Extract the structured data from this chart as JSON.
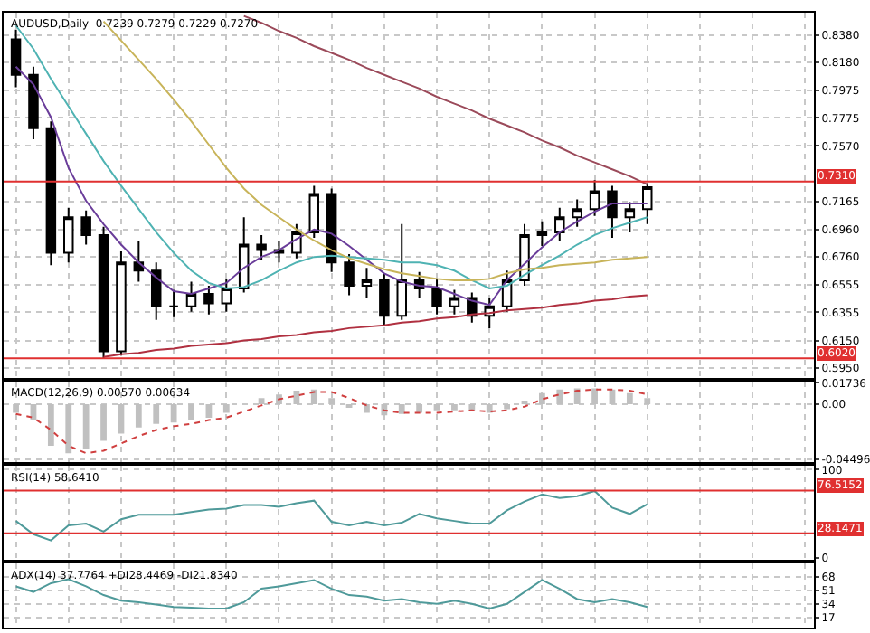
{
  "chart_data": [
    {
      "type": "candlestick",
      "title": "AUDUSD,Daily  0.7239 0.7279 0.7229 0.7270",
      "categories": [
        null,
        null,
        null,
        null,
        null,
        null,
        null,
        null,
        null,
        null,
        null,
        null,
        null,
        null,
        null,
        null,
        null,
        null,
        null,
        null,
        null,
        null,
        null,
        null,
        null,
        null,
        null,
        null,
        null,
        null,
        null,
        null,
        null,
        null,
        null,
        null,
        null
      ],
      "ohlc": [
        [
          0.835,
          0.842,
          0.8,
          0.809
        ],
        [
          0.809,
          0.815,
          0.762,
          0.77
        ],
        [
          0.77,
          0.775,
          0.67,
          0.679
        ],
        [
          0.679,
          0.712,
          0.672,
          0.705
        ],
        [
          0.705,
          0.71,
          0.685,
          0.692
        ],
        [
          0.692,
          0.698,
          0.602,
          0.607
        ],
        [
          0.607,
          0.68,
          0.604,
          0.672
        ],
        [
          0.672,
          0.688,
          0.658,
          0.666
        ],
        [
          0.666,
          0.672,
          0.63,
          0.64
        ],
        [
          0.64,
          0.652,
          0.632,
          0.64
        ],
        [
          0.64,
          0.658,
          0.636,
          0.649
        ],
        [
          0.649,
          0.655,
          0.634,
          0.642
        ],
        [
          0.642,
          0.66,
          0.636,
          0.653
        ],
        [
          0.653,
          0.705,
          0.65,
          0.685
        ],
        [
          0.685,
          0.692,
          0.674,
          0.681
        ],
        [
          0.681,
          0.688,
          0.672,
          0.679
        ],
        [
          0.679,
          0.7,
          0.675,
          0.694
        ],
        [
          0.694,
          0.728,
          0.69,
          0.722
        ],
        [
          0.722,
          0.726,
          0.665,
          0.672
        ],
        [
          0.672,
          0.678,
          0.648,
          0.655
        ],
        [
          0.655,
          0.668,
          0.646,
          0.659
        ],
        [
          0.659,
          0.664,
          0.626,
          0.633
        ],
        [
          0.633,
          0.7,
          0.63,
          0.659
        ],
        [
          0.659,
          0.665,
          0.646,
          0.653
        ],
        [
          0.653,
          0.66,
          0.634,
          0.64
        ],
        [
          0.64,
          0.652,
          0.634,
          0.646
        ],
        [
          0.646,
          0.65,
          0.628,
          0.633
        ],
        [
          0.633,
          0.646,
          0.624,
          0.64
        ],
        [
          0.64,
          0.666,
          0.636,
          0.659
        ],
        [
          0.659,
          0.7,
          0.655,
          0.692
        ],
        [
          0.692,
          0.702,
          0.684,
          0.694
        ],
        [
          0.694,
          0.712,
          0.688,
          0.705
        ],
        [
          0.705,
          0.718,
          0.698,
          0.711
        ],
        [
          0.711,
          0.732,
          0.706,
          0.724
        ],
        [
          0.724,
          0.728,
          0.69,
          0.705
        ],
        [
          0.705,
          0.716,
          0.694,
          0.711
        ],
        [
          0.711,
          0.73,
          0.7,
          0.727
        ]
      ],
      "series": [
        {
          "type": "line",
          "color": "#6a3d9a",
          "values": [
            0.815,
            0.802,
            0.778,
            0.741,
            0.717,
            0.7,
            0.685,
            0.672,
            0.661,
            0.651,
            0.649,
            0.653,
            0.657,
            0.668,
            0.676,
            0.681,
            0.689,
            0.696,
            0.693,
            0.684,
            0.674,
            0.664,
            0.658,
            0.655,
            0.654,
            0.649,
            0.644,
            0.641,
            0.659,
            0.671,
            0.683,
            0.694,
            0.702,
            0.709,
            0.715,
            0.715,
            0.715
          ]
        },
        {
          "type": "line",
          "color": "#4fb3b3",
          "values": [
            0.845,
            0.828,
            0.806,
            0.786,
            0.766,
            0.746,
            0.728,
            0.711,
            0.694,
            0.679,
            0.666,
            0.657,
            0.653,
            0.654,
            0.659,
            0.666,
            0.672,
            0.676,
            0.677,
            0.676,
            0.675,
            0.674,
            0.672,
            0.672,
            0.67,
            0.666,
            0.659,
            0.653,
            0.655,
            0.663,
            0.67,
            0.677,
            0.685,
            0.692,
            0.697,
            0.701,
            0.705
          ]
        },
        {
          "type": "line",
          "color": "#c8b45a",
          "values": [
            null,
            null,
            null,
            null,
            null,
            0.848,
            0.834,
            0.82,
            0.806,
            0.791,
            0.775,
            0.758,
            0.741,
            0.726,
            0.714,
            0.705,
            0.696,
            0.688,
            0.681,
            0.675,
            0.671,
            0.667,
            0.664,
            0.662,
            0.66,
            0.659,
            0.659,
            0.66,
            0.664,
            0.667,
            0.668,
            0.67,
            0.671,
            0.672,
            0.674,
            0.675,
            0.676
          ]
        },
        {
          "type": "line",
          "color": "#9b4a5a",
          "values": [
            null,
            null,
            null,
            null,
            null,
            null,
            null,
            null,
            null,
            null,
            null,
            null,
            null,
            0.852,
            0.847,
            0.841,
            0.836,
            0.83,
            0.825,
            0.82,
            0.814,
            0.809,
            0.804,
            0.799,
            0.793,
            0.788,
            0.783,
            0.777,
            0.772,
            0.767,
            0.761,
            0.756,
            0.75,
            0.745,
            0.74,
            0.735,
            0.729
          ]
        },
        {
          "type": "line",
          "color": "#b03040",
          "values": [
            null,
            null,
            null,
            null,
            null,
            0.603,
            0.605,
            0.606,
            0.608,
            0.609,
            0.611,
            0.612,
            0.613,
            0.615,
            0.616,
            0.618,
            0.619,
            0.621,
            0.622,
            0.624,
            0.625,
            0.626,
            0.628,
            0.629,
            0.631,
            0.632,
            0.634,
            0.635,
            0.637,
            0.638,
            0.639,
            0.641,
            0.642,
            0.644,
            0.645,
            0.647,
            0.648
          ]
        }
      ],
      "ylim": [
        0.5876,
        0.8545
      ],
      "yticks": [
        {
          "value": 0.838,
          "label": "0.8380"
        },
        {
          "value": 0.818,
          "label": "0.8180"
        },
        0.7975,
        0.7775,
        {
          "value": 0.757,
          "label": "0.7570"
        },
        0.7165,
        {
          "value": 0.696,
          "label": "0.6960"
        },
        {
          "value": 0.676,
          "label": "0.6760"
        },
        0.6555,
        0.6355,
        {
          "value": 0.615,
          "label": "0.6150"
        },
        {
          "value": 0.595,
          "label": "0.5950"
        }
      ],
      "ref_lines": [
        {
          "axis": "y",
          "value": 0.731,
          "label": "0.7310",
          "color": "#e03030"
        },
        {
          "axis": "y",
          "value": 0.602,
          "label": "0.6020",
          "color": "#e03030"
        }
      ],
      "grid": true,
      "tick_labels": "y"
    },
    {
      "type": "bar",
      "title": "MACD(12,26,9) 0.00570 0.00634",
      "categories": [
        null,
        null,
        null,
        null,
        null,
        null,
        null,
        null,
        null,
        null,
        null,
        null,
        null,
        null,
        null,
        null,
        null,
        null,
        null,
        null,
        null,
        null,
        null,
        null,
        null,
        null,
        null,
        null,
        null,
        null,
        null,
        null,
        null,
        null,
        null,
        null,
        null
      ],
      "series": [
        {
          "type": "bar",
          "color": "#c0c0c0",
          "values": [
            -0.007,
            -0.013,
            -0.034,
            -0.04,
            -0.037,
            -0.03,
            -0.024,
            -0.019,
            -0.016,
            -0.015,
            -0.013,
            -0.011,
            -0.007,
            0,
            0.005,
            0.008,
            0.011,
            0.012,
            0.005,
            -0.003,
            -0.007,
            -0.009,
            -0.008,
            -0.007,
            -0.005,
            -0.005,
            -0.005,
            -0.007,
            -0.004,
            0.003,
            0.009,
            0.012,
            0.013,
            0.013,
            0.012,
            0.009,
            0.005
          ]
        },
        {
          "type": "line",
          "color": "#d04040",
          "line_style": "dotted",
          "values": [
            -0.008,
            -0.011,
            -0.021,
            -0.034,
            -0.04,
            -0.038,
            -0.032,
            -0.026,
            -0.021,
            -0.018,
            -0.016,
            -0.013,
            -0.011,
            -0.006,
            -0.001,
            0.004,
            0.007,
            0.01,
            0.01,
            0.005,
            -0.001,
            -0.005,
            -0.007,
            -0.007,
            -0.007,
            -0.006,
            -0.005,
            -0.006,
            -0.005,
            -0.002,
            0.004,
            0.008,
            0.011,
            0.012,
            0.012,
            0.011,
            0.008
          ]
        }
      ],
      "ylim": [
        -0.047,
        0.0185
      ],
      "yticks": [
        {
          "value": 0.01736,
          "label": "0.01736"
        },
        {
          "value": 0,
          "label": "0.00"
        },
        {
          "value": -0.04496,
          "label": "-0.04496"
        }
      ],
      "grid": true,
      "tick_labels": "y"
    },
    {
      "type": "line",
      "title": "RSI(14) 58.6410",
      "categories": [
        null,
        null,
        null,
        null,
        null,
        null,
        null,
        null,
        null,
        null,
        null,
        null,
        null,
        null,
        null,
        null,
        null,
        null,
        null,
        null,
        null,
        null,
        null,
        null,
        null,
        null,
        null,
        null,
        null,
        null,
        null,
        null,
        null,
        null,
        null,
        null,
        null
      ],
      "series": [
        {
          "color": "#4f9a9a",
          "values": [
            42,
            27,
            20,
            37,
            39,
            30,
            44,
            49,
            49,
            49,
            52,
            55,
            56,
            60,
            60,
            58,
            62,
            65,
            41,
            37,
            41,
            37,
            40,
            50,
            45,
            42,
            39,
            39,
            54,
            64,
            72,
            68,
            70,
            76,
            57,
            50,
            61
          ]
        }
      ],
      "ylim": [
        -2,
        105
      ],
      "yticks": [
        0,
        100
      ],
      "ref_lines": [
        {
          "axis": "y",
          "value": 76.5152,
          "label": "76.5152",
          "color": "#e03030"
        },
        {
          "axis": "y",
          "value": 28.1471,
          "label": "28.1471",
          "color": "#e03030"
        }
      ],
      "grid": true,
      "tick_labels": "y"
    },
    {
      "type": "line",
      "title": "ADX(14) 37.7764 +DI28.4469 -DI21.8340",
      "categories": [
        null,
        null,
        null,
        null,
        null,
        null,
        null,
        null,
        null,
        null,
        null,
        null,
        null,
        null,
        null,
        null,
        null,
        null,
        null,
        null,
        null,
        null,
        null,
        null,
        null,
        null,
        null,
        null,
        null,
        null,
        null,
        null,
        null,
        null,
        null,
        null,
        null
      ],
      "series": [
        {
          "color": "#4f9a9a",
          "values": [
            56,
            49,
            60,
            65,
            56,
            45,
            38,
            36,
            33,
            30,
            29,
            28,
            28,
            36,
            53,
            56,
            60,
            64,
            53,
            45,
            43,
            38,
            40,
            36,
            34,
            38,
            34,
            28,
            34,
            49,
            64,
            53,
            40,
            36,
            40,
            36,
            30
          ]
        }
      ],
      "ylim": [
        4,
        85
      ],
      "yticks": [
        68,
        51,
        34,
        17
      ],
      "grid": true,
      "tick_labels": "y"
    }
  ]
}
